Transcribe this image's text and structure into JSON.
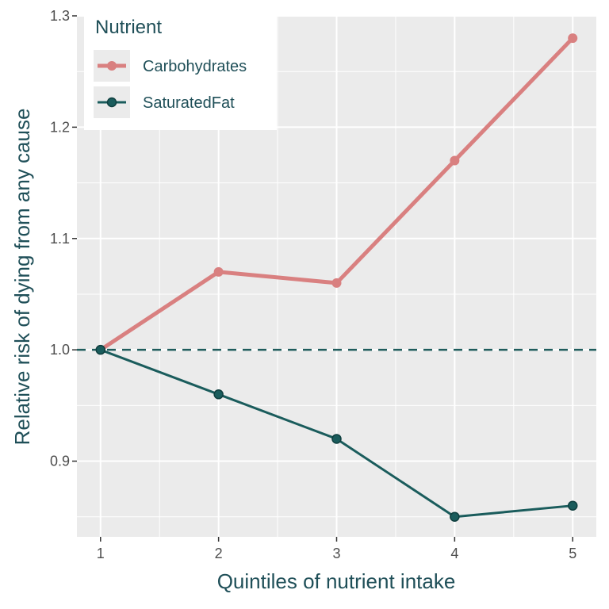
{
  "chart_data": {
    "type": "line",
    "xlabel": "Quintiles of nutrient intake",
    "ylabel": "Relative risk of dying from any cause",
    "x": [
      1,
      2,
      3,
      4,
      5
    ],
    "x_tick_labels": [
      "1",
      "2",
      "3",
      "4",
      "5"
    ],
    "y_tick_labels": [
      "0.9",
      "1.0",
      "1.1",
      "1.2",
      "1.3"
    ],
    "y_ticks": [
      0.9,
      1.0,
      1.1,
      1.2,
      1.3
    ],
    "xlim": [
      0.8,
      5.2
    ],
    "ylim": [
      0.832,
      1.3
    ],
    "grid": true,
    "reference_line": {
      "y": 1.0,
      "style": "dashed",
      "color": "#1f5c5c"
    },
    "legend": {
      "title": "Nutrient",
      "position": "top-left"
    },
    "series": [
      {
        "name": "Carbohydrates",
        "values": [
          1.0,
          1.07,
          1.06,
          1.17,
          1.28
        ],
        "color": "#d98080"
      },
      {
        "name": "SaturatedFat",
        "values": [
          1.0,
          0.96,
          0.92,
          0.85,
          0.86
        ],
        "color": "#1a5c5c"
      }
    ]
  },
  "colors": {
    "panel_background": "#ebebeb",
    "grid_major": "#ffffff",
    "text": "#1f4f58"
  }
}
